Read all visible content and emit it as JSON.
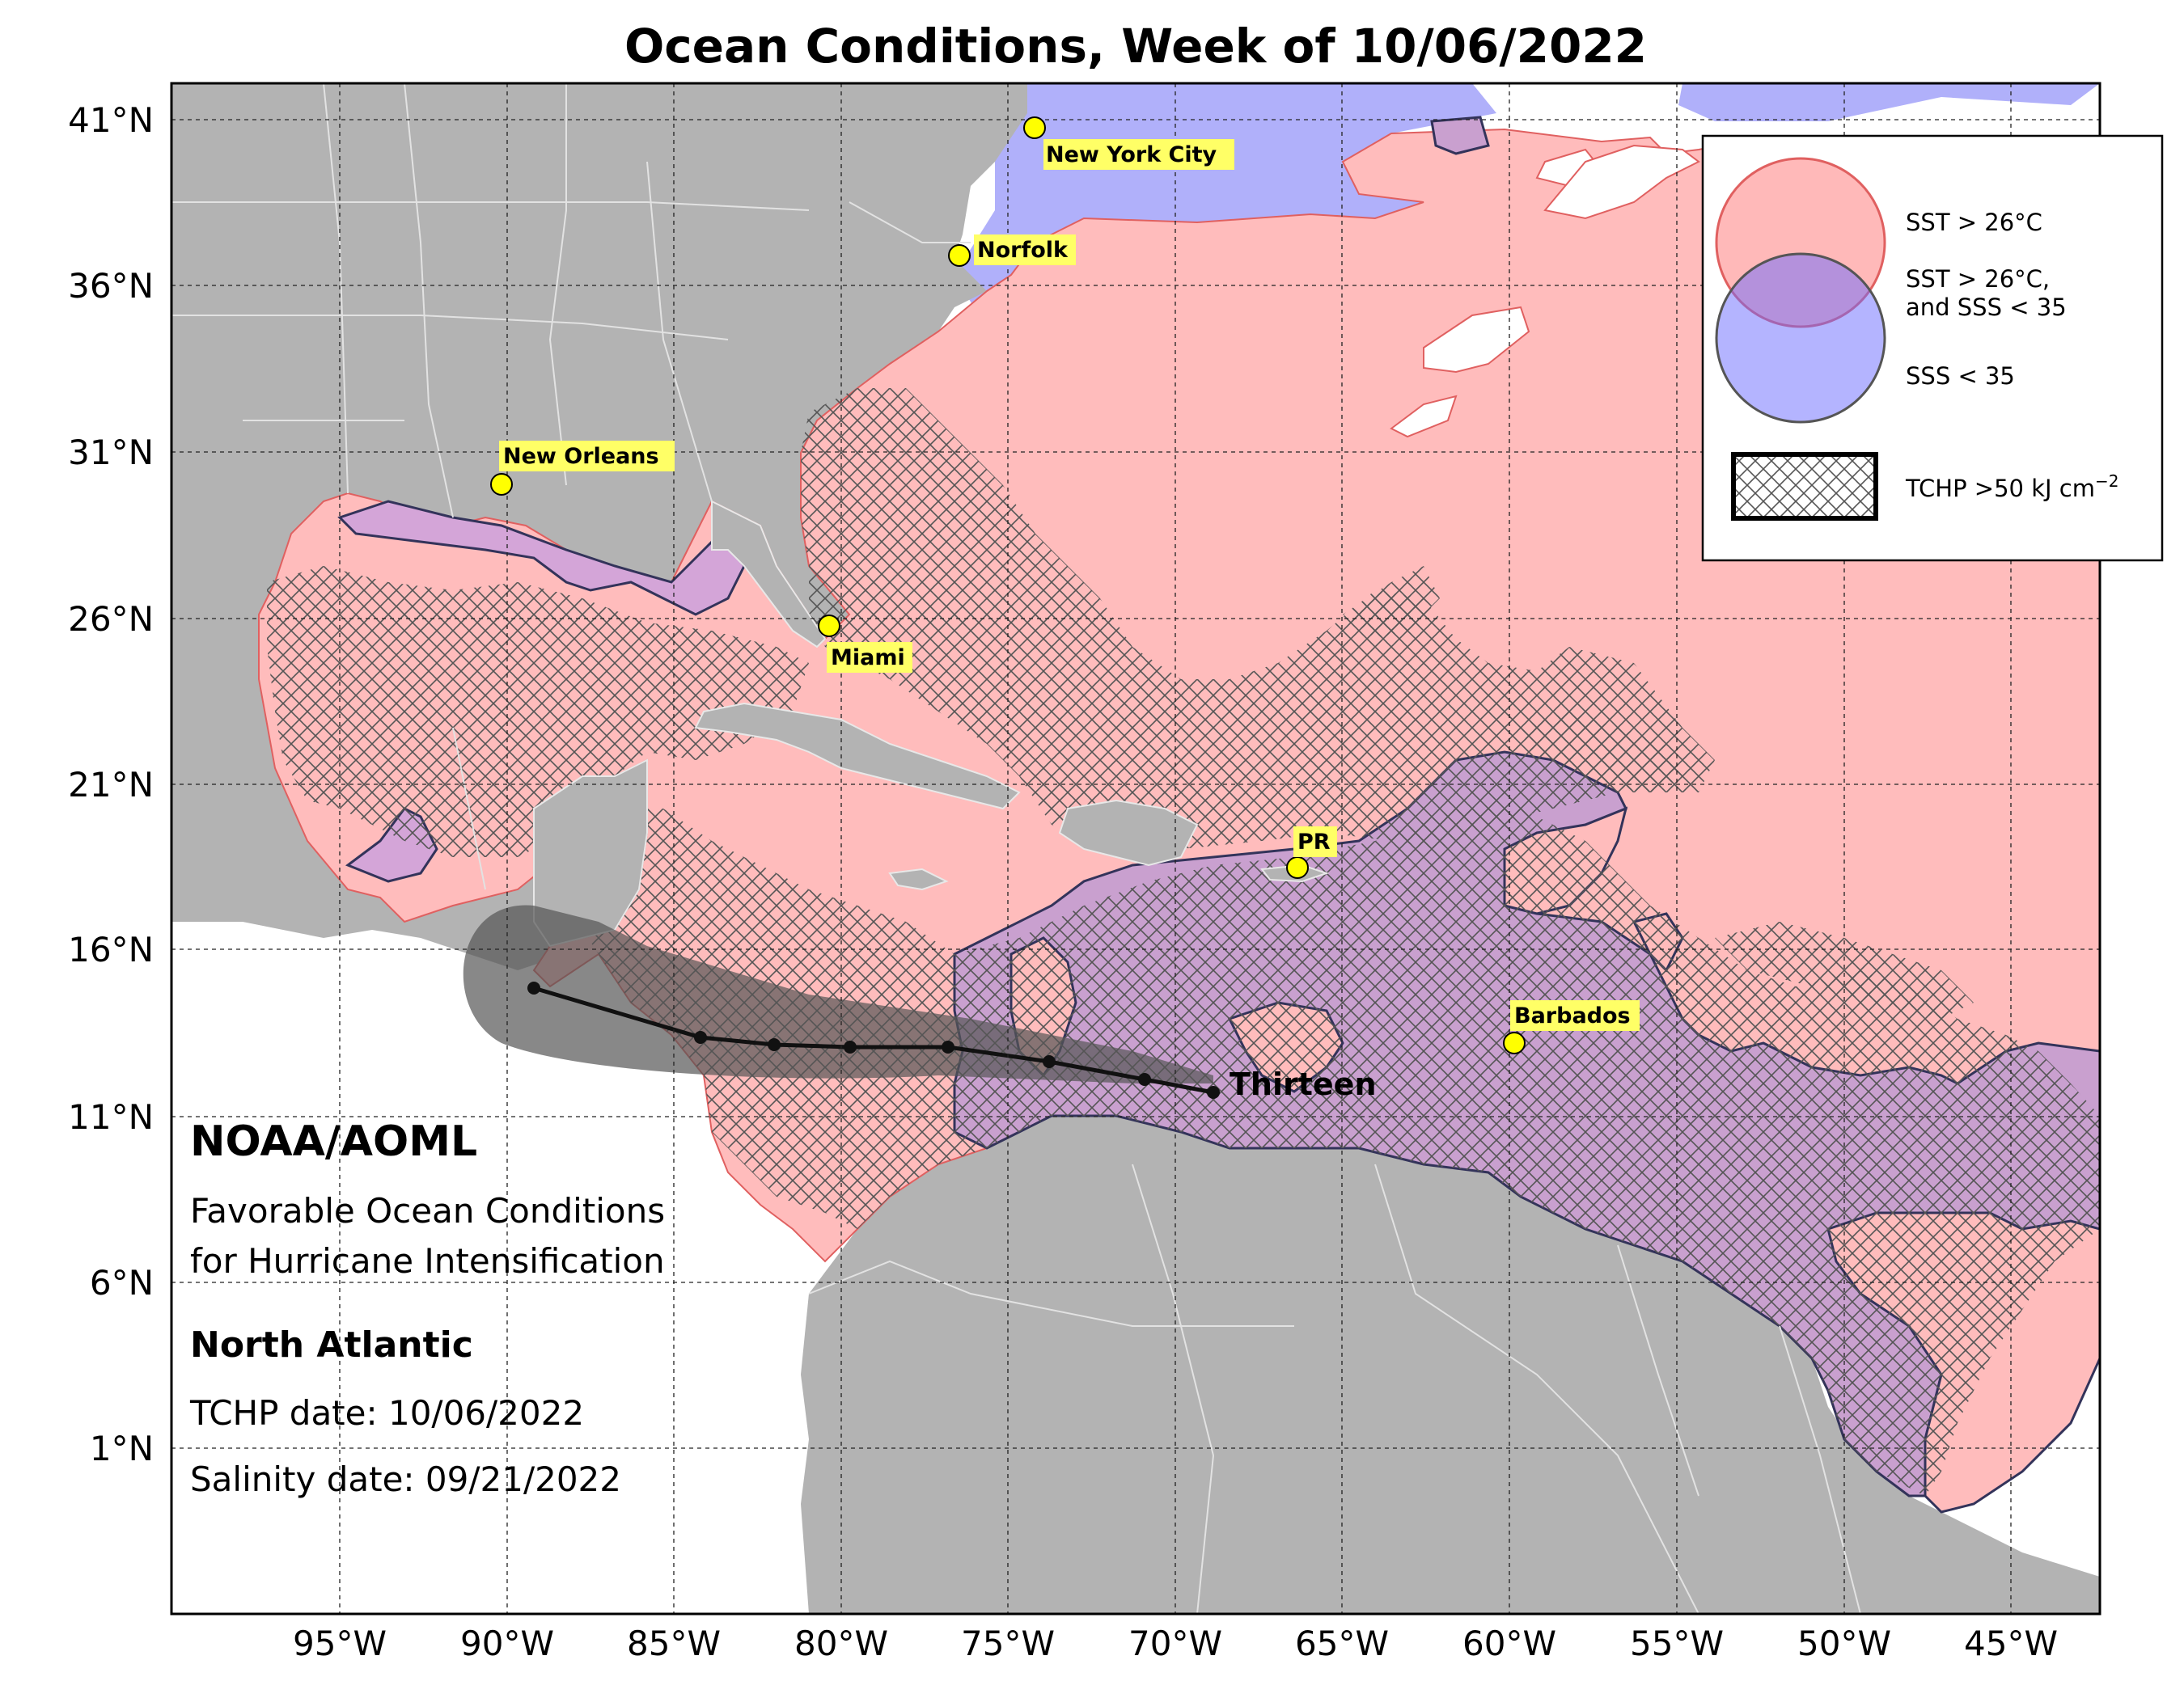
{
  "title": "Ocean Conditions, Week of 10/06/2022",
  "lat_labels": [
    "41°N",
    "36°N",
    "31°N",
    "26°N",
    "21°N",
    "16°N",
    "11°N",
    "6°N",
    "1°N"
  ],
  "lon_labels": [
    "95°W",
    "90°W",
    "85°W",
    "80°W",
    "75°W",
    "70°W",
    "65°W",
    "60°W",
    "55°W",
    "50°W",
    "45°W"
  ],
  "cities": {
    "new_york": "New York City",
    "norfolk": "Norfolk",
    "new_orleans": "New Orleans",
    "miami": "Miami",
    "pr": "PR",
    "barbados": "Barbados"
  },
  "storm": {
    "name": "Thirteen"
  },
  "legend": {
    "sst": "SST > 26°C",
    "sst_sss_line1": "SST > 26°C,",
    "sst_sss_line2": "and SSS < 35",
    "sss": "SSS < 35",
    "tchp_prefix": "TCHP >50 kJ cm",
    "tchp_exp": "−2"
  },
  "info": {
    "org": "NOAA/AOML",
    "line1": "Favorable Ocean Conditions",
    "line2": "for Hurricane Intensification",
    "region": "North Atlantic",
    "tchp_date": "TCHP date: 10/06/2022",
    "salinity_date": "Salinity date: 09/21/2022"
  },
  "colors": {
    "land": "#b3b3b3",
    "sst": "#ffbcbc",
    "sst_sss": "#c9a0cf",
    "sss": "#b0b0fa",
    "storm_cone": "#555555",
    "city_marker": "#ffff00"
  }
}
